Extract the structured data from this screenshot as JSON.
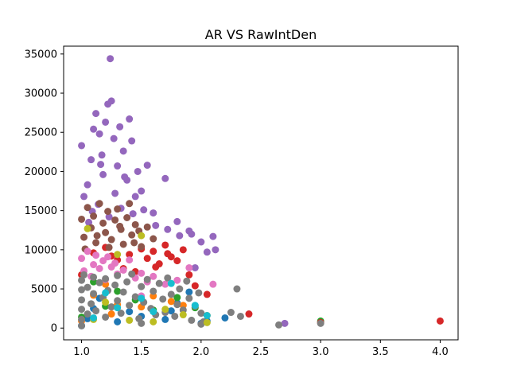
{
  "chart_data": {
    "type": "scatter",
    "title": "AR VS RawIntDen",
    "xlabel": "",
    "ylabel": "",
    "xlim": [
      0.85,
      4.15
    ],
    "ylim": [
      -1500,
      36000
    ],
    "xticks": [
      1.0,
      1.5,
      2.0,
      2.5,
      3.0,
      3.5,
      4.0
    ],
    "xtick_labels": [
      "1.0",
      "1.5",
      "2.0",
      "2.5",
      "3.0",
      "3.5",
      "4.0"
    ],
    "yticks": [
      0,
      5000,
      10000,
      15000,
      20000,
      25000,
      30000,
      35000
    ],
    "ytick_labels": [
      "0",
      "5000",
      "10000",
      "15000",
      "20000",
      "25000",
      "30000",
      "35000"
    ],
    "grid": false,
    "series": [
      {
        "color": "#1f77b4",
        "points": [
          [
            1.0,
            300
          ],
          [
            1.05,
            1200
          ],
          [
            1.1,
            2500
          ],
          [
            1.3,
            800
          ],
          [
            1.5,
            1500
          ],
          [
            1.7,
            1100
          ],
          [
            1.75,
            2200
          ],
          [
            1.8,
            3200
          ],
          [
            1.9,
            4600
          ],
          [
            2.0,
            600
          ],
          [
            2.05,
            900
          ],
          [
            2.2,
            1300
          ],
          [
            1.15,
            3800
          ],
          [
            1.4,
            2100
          ]
        ]
      },
      {
        "color": "#ff7f0e",
        "points": [
          [
            1.0,
            900
          ],
          [
            1.1,
            4200
          ],
          [
            1.2,
            5600
          ],
          [
            1.3,
            3000
          ],
          [
            1.5,
            2700
          ],
          [
            1.6,
            4100
          ],
          [
            1.75,
            3400
          ],
          [
            1.85,
            2900
          ],
          [
            2.05,
            1600
          ],
          [
            1.25,
            1800
          ]
        ]
      },
      {
        "color": "#2ca02c",
        "points": [
          [
            1.0,
            1400
          ],
          [
            1.1,
            5900
          ],
          [
            1.3,
            4700
          ],
          [
            1.45,
            3600
          ],
          [
            1.6,
            2300
          ],
          [
            1.8,
            3900
          ],
          [
            1.95,
            2600
          ],
          [
            3.0,
            900
          ],
          [
            1.2,
            2800
          ]
        ]
      },
      {
        "color": "#d62728",
        "points": [
          [
            1.0,
            6800
          ],
          [
            1.1,
            9600
          ],
          [
            1.2,
            10300
          ],
          [
            1.3,
            8700
          ],
          [
            1.4,
            9400
          ],
          [
            1.5,
            10100
          ],
          [
            1.55,
            8900
          ],
          [
            1.6,
            9800
          ],
          [
            1.65,
            8200
          ],
          [
            1.7,
            10600
          ],
          [
            1.75,
            9100
          ],
          [
            1.8,
            8600
          ],
          [
            1.85,
            10000
          ],
          [
            1.9,
            6800
          ],
          [
            1.95,
            5400
          ],
          [
            2.05,
            4300
          ],
          [
            2.4,
            1800
          ],
          [
            3.0,
            700
          ],
          [
            4.0,
            900
          ],
          [
            1.35,
            7600
          ],
          [
            1.45,
            7200
          ],
          [
            1.25,
            9200
          ],
          [
            1.62,
            7800
          ],
          [
            1.72,
            9500
          ]
        ]
      },
      {
        "color": "#9467bd",
        "points": [
          [
            1.0,
            23300
          ],
          [
            1.02,
            16800
          ],
          [
            1.05,
            18300
          ],
          [
            1.08,
            21500
          ],
          [
            1.1,
            25400
          ],
          [
            1.12,
            27400
          ],
          [
            1.15,
            24800
          ],
          [
            1.17,
            22100
          ],
          [
            1.18,
            19600
          ],
          [
            1.2,
            26300
          ],
          [
            1.22,
            28600
          ],
          [
            1.24,
            34400
          ],
          [
            1.25,
            29000
          ],
          [
            1.27,
            24200
          ],
          [
            1.3,
            20700
          ],
          [
            1.32,
            25700
          ],
          [
            1.35,
            22600
          ],
          [
            1.38,
            18900
          ],
          [
            1.4,
            26700
          ],
          [
            1.42,
            23900
          ],
          [
            1.45,
            16800
          ],
          [
            1.47,
            20000
          ],
          [
            1.5,
            17500
          ],
          [
            1.55,
            20800
          ],
          [
            1.6,
            14700
          ],
          [
            1.7,
            19100
          ],
          [
            1.8,
            13600
          ],
          [
            1.9,
            12400
          ],
          [
            2.0,
            11000
          ],
          [
            2.05,
            9700
          ],
          [
            2.1,
            11700
          ],
          [
            2.12,
            10000
          ],
          [
            1.95,
            7700
          ],
          [
            2.7,
            600
          ],
          [
            1.06,
            13500
          ],
          [
            1.14,
            15800
          ],
          [
            1.23,
            14200
          ],
          [
            1.33,
            15300
          ],
          [
            1.43,
            14600
          ],
          [
            1.52,
            15100
          ],
          [
            1.62,
            13100
          ],
          [
            1.72,
            12600
          ],
          [
            1.82,
            11800
          ],
          [
            1.92,
            12000
          ],
          [
            1.28,
            17200
          ],
          [
            1.36,
            19300
          ],
          [
            1.16,
            20900
          ],
          [
            1.09,
            14900
          ]
        ]
      },
      {
        "color": "#8c564b",
        "points": [
          [
            1.0,
            13900
          ],
          [
            1.02,
            11600
          ],
          [
            1.05,
            15400
          ],
          [
            1.08,
            12800
          ],
          [
            1.1,
            14300
          ],
          [
            1.12,
            10900
          ],
          [
            1.15,
            15900
          ],
          [
            1.18,
            13400
          ],
          [
            1.2,
            12200
          ],
          [
            1.22,
            14900
          ],
          [
            1.25,
            11300
          ],
          [
            1.28,
            13800
          ],
          [
            1.3,
            15200
          ],
          [
            1.33,
            12600
          ],
          [
            1.35,
            10700
          ],
          [
            1.38,
            14100
          ],
          [
            1.4,
            15900
          ],
          [
            1.42,
            11900
          ],
          [
            1.45,
            13200
          ],
          [
            1.48,
            12400
          ],
          [
            1.5,
            10400
          ],
          [
            1.55,
            12900
          ],
          [
            1.6,
            11400
          ],
          [
            1.03,
            10100
          ],
          [
            1.13,
            11800
          ],
          [
            1.23,
            10300
          ],
          [
            1.32,
            13000
          ],
          [
            1.44,
            10900
          ]
        ]
      },
      {
        "color": "#e377c2",
        "points": [
          [
            1.0,
            8900
          ],
          [
            1.02,
            7300
          ],
          [
            1.05,
            9800
          ],
          [
            1.08,
            6600
          ],
          [
            1.1,
            8100
          ],
          [
            1.12,
            9300
          ],
          [
            1.15,
            7600
          ],
          [
            1.18,
            8600
          ],
          [
            1.2,
            6200
          ],
          [
            1.22,
            9100
          ],
          [
            1.25,
            7800
          ],
          [
            1.28,
            8300
          ],
          [
            1.3,
            6900
          ],
          [
            1.35,
            7400
          ],
          [
            1.4,
            8700
          ],
          [
            1.45,
            6400
          ],
          [
            1.5,
            7000
          ],
          [
            1.55,
            5900
          ],
          [
            1.6,
            6600
          ],
          [
            1.7,
            5600
          ],
          [
            1.8,
            6100
          ],
          [
            1.9,
            7700
          ],
          [
            2.1,
            5600
          ],
          [
            1.5,
            4100
          ]
        ]
      },
      {
        "color": "#7f7f7f",
        "points": [
          [
            1.0,
            300
          ],
          [
            1.0,
            1100
          ],
          [
            1.0,
            2400
          ],
          [
            1.0,
            3600
          ],
          [
            1.0,
            4900
          ],
          [
            1.0,
            6100
          ],
          [
            1.02,
            6800
          ],
          [
            1.05,
            1800
          ],
          [
            1.05,
            5200
          ],
          [
            1.08,
            3100
          ],
          [
            1.1,
            4400
          ],
          [
            1.1,
            6500
          ],
          [
            1.12,
            2200
          ],
          [
            1.15,
            5800
          ],
          [
            1.18,
            3900
          ],
          [
            1.2,
            1400
          ],
          [
            1.2,
            6300
          ],
          [
            1.22,
            4800
          ],
          [
            1.25,
            2700
          ],
          [
            1.28,
            5500
          ],
          [
            1.3,
            3500
          ],
          [
            1.3,
            6700
          ],
          [
            1.33,
            1900
          ],
          [
            1.35,
            4600
          ],
          [
            1.38,
            5900
          ],
          [
            1.4,
            2900
          ],
          [
            1.42,
            6900
          ],
          [
            1.45,
            4000
          ],
          [
            1.48,
            1200
          ],
          [
            1.5,
            5300
          ],
          [
            1.5,
            600
          ],
          [
            1.52,
            3300
          ],
          [
            1.55,
            6200
          ],
          [
            1.58,
            2500
          ],
          [
            1.6,
            4700
          ],
          [
            1.62,
            1700
          ],
          [
            1.65,
            5700
          ],
          [
            1.68,
            3700
          ],
          [
            1.7,
            2000
          ],
          [
            1.72,
            6400
          ],
          [
            1.75,
            4300
          ],
          [
            1.78,
            1500
          ],
          [
            1.8,
            3000
          ],
          [
            1.82,
            5000
          ],
          [
            1.85,
            2300
          ],
          [
            1.88,
            6000
          ],
          [
            1.9,
            3800
          ],
          [
            1.92,
            1000
          ],
          [
            1.95,
            2800
          ],
          [
            1.98,
            4500
          ],
          [
            2.0,
            1900
          ],
          [
            2.0,
            500
          ],
          [
            2.02,
            800
          ],
          [
            2.25,
            2000
          ],
          [
            2.3,
            5000
          ],
          [
            2.33,
            1500
          ],
          [
            2.65,
            400
          ],
          [
            3.0,
            600
          ]
        ]
      },
      {
        "color": "#bcbd22",
        "points": [
          [
            1.05,
            12700
          ],
          [
            1.1,
            1100
          ],
          [
            1.3,
            9400
          ],
          [
            1.4,
            1000
          ],
          [
            1.5,
            11800
          ],
          [
            1.7,
            2400
          ],
          [
            1.85,
            1700
          ],
          [
            2.05,
            700
          ],
          [
            1.2,
            3300
          ],
          [
            1.6,
            800
          ]
        ]
      },
      {
        "color": "#17becf",
        "points": [
          [
            1.1,
            1300
          ],
          [
            1.3,
            2600
          ],
          [
            1.5,
            3800
          ],
          [
            1.75,
            5700
          ],
          [
            1.95,
            2900
          ],
          [
            2.05,
            1600
          ],
          [
            1.2,
            4500
          ],
          [
            1.6,
            2100
          ]
        ]
      }
    ]
  }
}
